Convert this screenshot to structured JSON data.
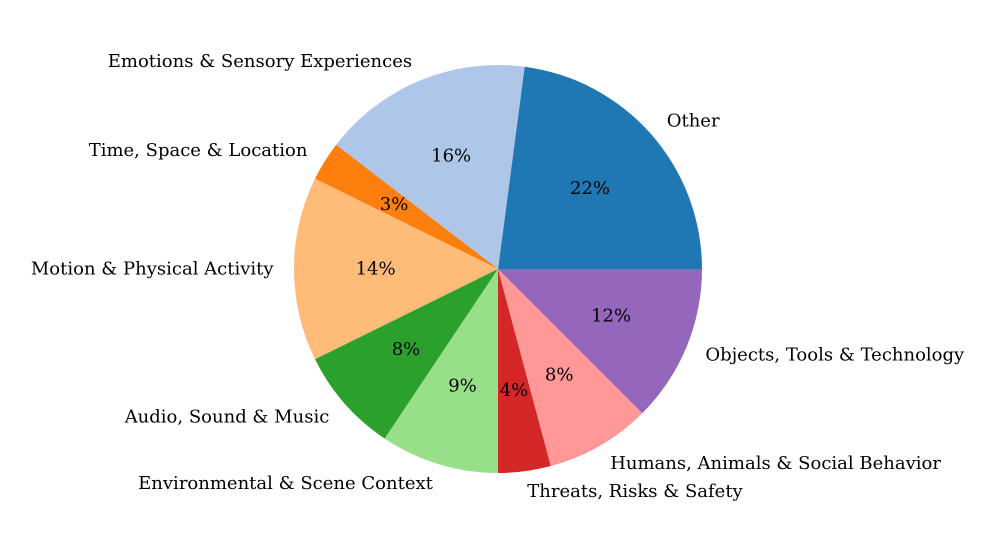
{
  "chart_data": {
    "type": "pie",
    "slices": [
      {
        "label": "Other",
        "value": 22,
        "pct_text": "22%",
        "color": "#1f77b4"
      },
      {
        "label": "Emotions & Sensory Experiences",
        "value": 16,
        "pct_text": "16%",
        "color": "#aec7e8"
      },
      {
        "label": "Time, Space & Location",
        "value": 3,
        "pct_text": "3%",
        "color": "#ff7f0e"
      },
      {
        "label": "Motion & Physical Activity",
        "value": 14,
        "pct_text": "14%",
        "color": "#ffbb78"
      },
      {
        "label": "Audio, Sound & Music",
        "value": 8,
        "pct_text": "8%",
        "color": "#2ca02c"
      },
      {
        "label": "Environmental & Scene Context",
        "value": 9,
        "pct_text": "9%",
        "color": "#98df8a"
      },
      {
        "label": "Threats, Risks & Safety",
        "value": 4,
        "pct_text": "4%",
        "color": "#d62728"
      },
      {
        "label": "Humans, Animals & Social Behavior",
        "value": 8,
        "pct_text": "8%",
        "color": "#ff9896"
      },
      {
        "label": "Objects, Tools & Technology",
        "value": 12,
        "pct_text": "12%",
        "color": "#9467bd"
      }
    ],
    "start_angle_deg": 0,
    "direction": "counterclockwise",
    "legend": "none"
  }
}
